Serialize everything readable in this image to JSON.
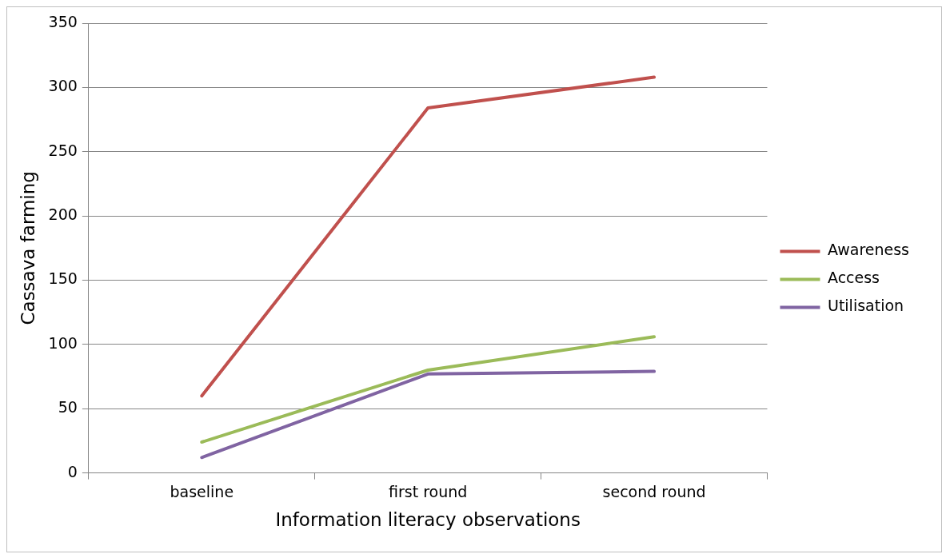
{
  "chart_data": {
    "type": "line",
    "xlabel": "Information literacy observations",
    "ylabel": "Cassava farming",
    "categories": [
      "baseline",
      "first round",
      "second round"
    ],
    "series": [
      {
        "name": "Awareness",
        "color": "#c0504d",
        "values": [
          60,
          284,
          308
        ]
      },
      {
        "name": "Access",
        "color": "#9bbb59",
        "values": [
          24,
          80,
          106
        ]
      },
      {
        "name": "Utilisation",
        "color": "#8064a2",
        "values": [
          12,
          77,
          79
        ]
      }
    ],
    "ylim": [
      0,
      350
    ],
    "yticks": [
      0,
      50,
      100,
      150,
      200,
      250,
      300,
      350
    ],
    "grid": "y",
    "legend": "right",
    "marker": "none",
    "line_style": "solid"
  }
}
